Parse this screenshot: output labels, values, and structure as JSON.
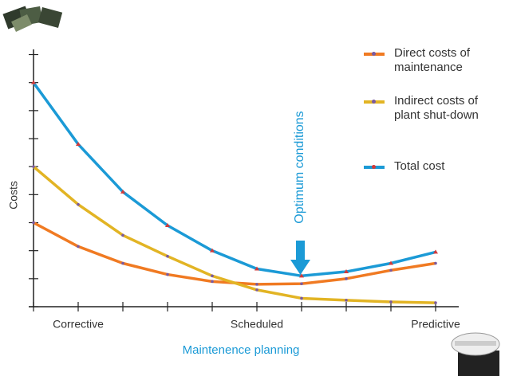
{
  "chart_data": {
    "type": "line",
    "x_label": "Maintenence planning",
    "y_label": "Costs",
    "annotation": "Optimum conditions",
    "categories": [
      null,
      "Corrective",
      null,
      null,
      null,
      "Scheduled",
      null,
      null,
      null,
      "Predictive"
    ],
    "ylim": [
      0,
      9.1
    ],
    "yticks": [
      0,
      1,
      2,
      3,
      4,
      5,
      6,
      7,
      8,
      9
    ],
    "series": [
      {
        "name": "Direct costs of maintenance",
        "color": "#f07a22",
        "values": [
          3.0,
          2.15,
          1.55,
          1.15,
          0.9,
          0.8,
          0.82,
          1.0,
          1.3,
          1.55
        ]
      },
      {
        "name": "Indirect costs of plant shut-down",
        "color": "#e2b424",
        "values": [
          5.0,
          3.65,
          2.55,
          1.8,
          1.1,
          0.6,
          0.3,
          0.23,
          0.17,
          0.14
        ]
      },
      {
        "name": "Total cost",
        "color": "#1b9ad6",
        "values": [
          8.0,
          5.8,
          4.1,
          2.9,
          2.0,
          1.35,
          1.1,
          1.25,
          1.55,
          1.95
        ]
      }
    ]
  }
}
